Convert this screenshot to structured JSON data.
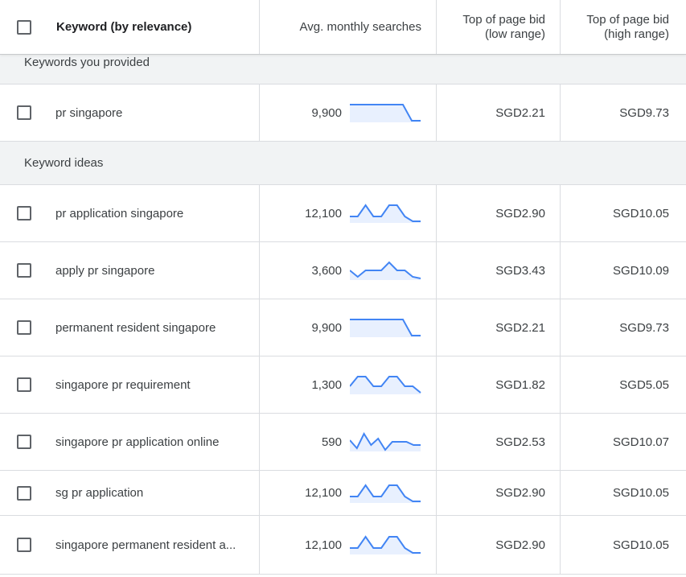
{
  "header": {
    "keyword_col": "Keyword (by relevance)",
    "searches_col": "Avg. monthly searches",
    "low_bid_col_line1": "Top of page bid",
    "low_bid_col_line2": "(low range)",
    "high_bid_col_line1": "Top of page bid",
    "high_bid_col_line2": "(high range)"
  },
  "groups": {
    "provided": "Keywords you provided",
    "ideas": "Keyword ideas"
  },
  "colors": {
    "spark_line": "#4285f4",
    "spark_fill": "#e8f0fe"
  },
  "rows": [
    {
      "keyword": "pr singapore",
      "searches": "9,900",
      "low": "SGD2.21",
      "high": "SGD9.73",
      "trend": [
        1,
        1,
        1,
        1,
        1,
        1,
        1,
        0,
        0
      ]
    },
    {
      "keyword": "pr application singapore",
      "searches": "12,100",
      "low": "SGD2.90",
      "high": "SGD10.05",
      "trend": [
        0.3,
        0.3,
        1,
        0.3,
        0.3,
        1,
        1,
        0.3,
        0,
        0
      ]
    },
    {
      "keyword": "apply pr singapore",
      "searches": "3,600",
      "low": "SGD3.43",
      "high": "SGD10.09",
      "trend": [
        0.5,
        0.1,
        0.5,
        0.5,
        0.5,
        1,
        0.5,
        0.5,
        0.1,
        0
      ]
    },
    {
      "keyword": "permanent resident singapore",
      "searches": "9,900",
      "low": "SGD2.21",
      "high": "SGD9.73",
      "trend": [
        1,
        1,
        1,
        1,
        1,
        1,
        1,
        0,
        0
      ]
    },
    {
      "keyword": "singapore pr requirement",
      "searches": "1,300",
      "low": "SGD1.82",
      "high": "SGD5.05",
      "trend": [
        0.4,
        1,
        1,
        0.4,
        0.4,
        1,
        1,
        0.4,
        0.4,
        0
      ]
    },
    {
      "keyword": "singapore pr application online",
      "searches": "590",
      "low": "SGD2.53",
      "high": "SGD10.07",
      "trend": [
        0.6,
        0.1,
        1,
        0.3,
        0.7,
        0,
        0.5,
        0.5,
        0.5,
        0.3,
        0.3
      ]
    },
    {
      "keyword": "sg pr application",
      "searches": "12,100",
      "low": "SGD2.90",
      "high": "SGD10.05",
      "trend": [
        0.3,
        0.3,
        1,
        0.3,
        0.3,
        1,
        1,
        0.3,
        0,
        0
      ]
    },
    {
      "keyword": "singapore permanent resident a...",
      "searches": "12,100",
      "low": "SGD2.90",
      "high": "SGD10.05",
      "trend": [
        0.3,
        0.3,
        1,
        0.3,
        0.3,
        1,
        1,
        0.3,
        0,
        0
      ]
    }
  ]
}
